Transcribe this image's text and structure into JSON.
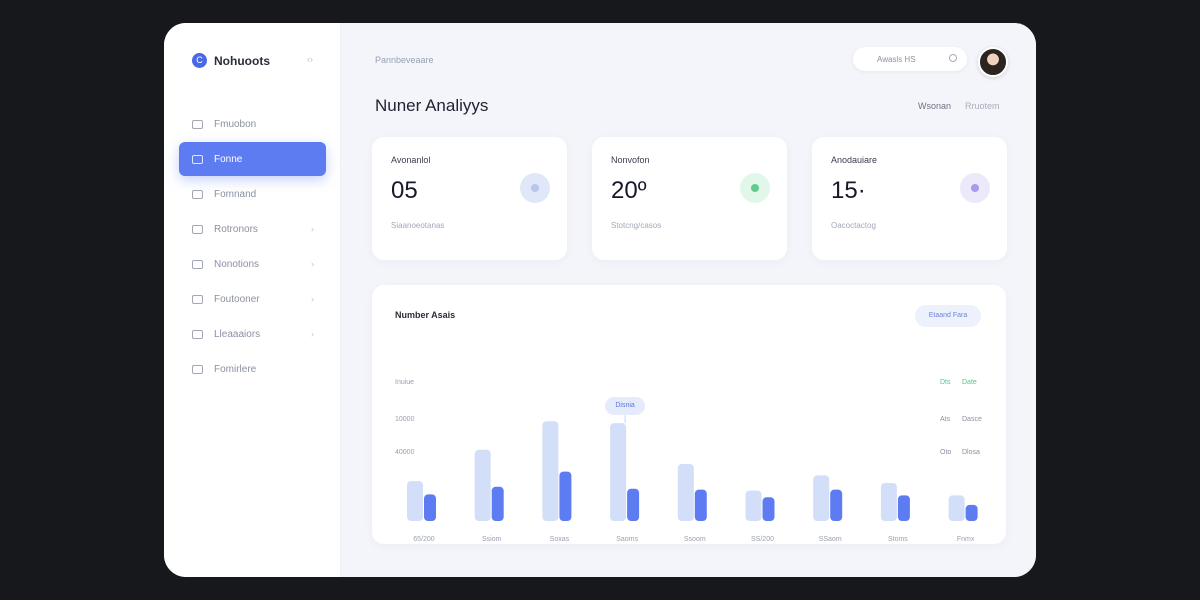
{
  "brand": {
    "name": "Nohuoots",
    "logo_glyph": "C"
  },
  "sidebar": {
    "collapse_glyph": "‹›",
    "items": [
      {
        "label": "Fmuobon",
        "icon": "grid-icon",
        "active": false,
        "chevron": false
      },
      {
        "label": "Fonne",
        "icon": "chart-icon",
        "active": true,
        "chevron": false
      },
      {
        "label": "Fomnand",
        "icon": "calendar-icon",
        "active": false,
        "chevron": false
      },
      {
        "label": "Rotronors",
        "icon": "users-icon",
        "active": false,
        "chevron": true
      },
      {
        "label": "Nonotions",
        "icon": "globe-icon",
        "active": false,
        "chevron": true
      },
      {
        "label": "Foutooner",
        "icon": "folder-icon",
        "active": false,
        "chevron": true
      },
      {
        "label": "Lleaaaiors",
        "icon": "inbox-icon",
        "active": false,
        "chevron": true
      },
      {
        "label": "Fomirlere",
        "icon": "file-icon",
        "active": false,
        "chevron": false
      }
    ],
    "chevron_glyph": "›"
  },
  "header": {
    "breadcrumb": "Pannbeveaare",
    "search_value": "Awasls HS",
    "title": "Nuner Analiyys",
    "tabs": [
      "Wsonan",
      "Rruotem"
    ]
  },
  "stats": [
    {
      "label": "Avonanlol",
      "value": "05",
      "sub": "Siaanoeotanas",
      "badge_color": "#dfe7f8",
      "badge_dot": "#b9c6ea"
    },
    {
      "label": "Nonvofon",
      "value": "20º",
      "sub": "Stotcng/casos",
      "badge_color": "#e1f7e9",
      "badge_dot": "#63c98c"
    },
    {
      "label": "Anodauiare",
      "value": "15·",
      "sub": "Oacoctactog",
      "badge_color": "#ece9fb",
      "badge_dot": "#a79be8"
    }
  ],
  "chart": {
    "title": "Number Asais",
    "button_label": "Etaand Fara",
    "tooltip": "Disnia",
    "tooltip_index": 3
  },
  "chart_data": {
    "type": "bar",
    "categories": [
      "65/200",
      "Ssiom",
      "Soxas",
      "Saoms",
      "Ssoom",
      "SS/200",
      "SSaom",
      "Stoms",
      "Fnmx"
    ],
    "y_tick_labels": [
      "Inuiue",
      "10000",
      "40000"
    ],
    "right_legend": [
      {
        "label": "Dts",
        "value": "Date",
        "color": "#58c48a"
      },
      {
        "label": "Ats",
        "value": "Dasce",
        "color": "#8c90a2"
      },
      {
        "label": "Oto",
        "value": "Dlosa",
        "color": "#8c90a2"
      }
    ],
    "series": [
      {
        "color": "#d3def8",
        "values": [
          42,
          75,
          105,
          103,
          60,
          32,
          48,
          40,
          27
        ]
      },
      {
        "color": "#5e7cf2",
        "values": [
          28,
          36,
          52,
          34,
          33,
          25,
          33,
          27,
          17
        ]
      }
    ],
    "ylim": [
      0,
      120
    ],
    "grid": false
  }
}
